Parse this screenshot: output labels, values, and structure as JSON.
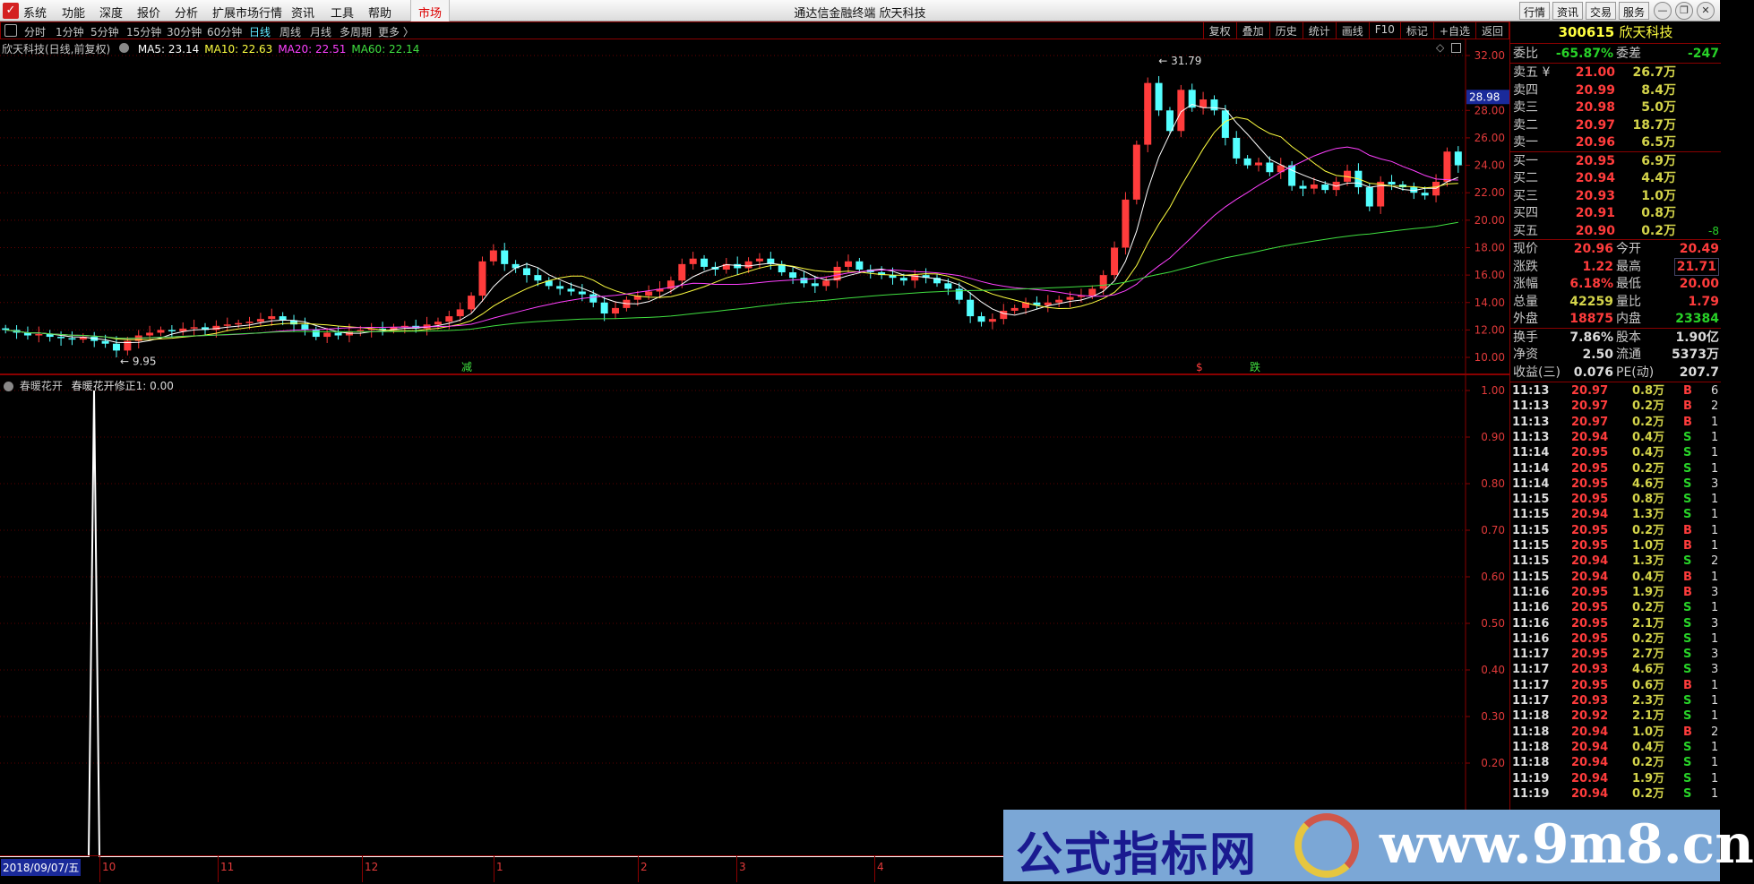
{
  "titlebar": {
    "app_title": "通达信金融终端  欣天科技",
    "menu": [
      "系统",
      "功能",
      "深度",
      "报价",
      "分析",
      "扩展市场行情",
      "资讯",
      "工具",
      "帮助"
    ],
    "market": "市场",
    "right_buttons": [
      "行情",
      "资讯",
      "交易",
      "服务"
    ],
    "window_controls": [
      "minimize-icon",
      "restore-icon",
      "close-icon"
    ]
  },
  "toolbar": {
    "periods": [
      "分时",
      "1分钟",
      "5分钟",
      "15分钟",
      "30分钟",
      "60分钟",
      "日线",
      "周线",
      "月线",
      "多周期",
      "更多 〉"
    ],
    "active_period": "日线",
    "buttons": [
      "复权",
      "叠加",
      "历史",
      "统计",
      "画线",
      "F10",
      "标记",
      "+自选",
      "返回"
    ]
  },
  "main_chart": {
    "title": "欣天科技(日线,前复权)",
    "ma": [
      {
        "label": "MA5: 23.14",
        "color": "#ffffff",
        "period": 5
      },
      {
        "label": "MA10: 22.63",
        "color": "#ffff40",
        "period": 10
      },
      {
        "label": "MA20: 22.51",
        "color": "#ff40ff",
        "period": 20
      },
      {
        "label": "MA60: 22.14",
        "color": "#40e040",
        "period": 60
      }
    ],
    "y_ticks": [
      "32.00",
      "28.00",
      "26.00",
      "24.00",
      "22.00",
      "20.00",
      "18.00",
      "16.00",
      "14.00",
      "12.00",
      "10.00"
    ],
    "crosshair_price": "28.98",
    "high_label": "31.79",
    "low_label": "9.95",
    "markers": [
      {
        "text": "减",
        "color": "#40e040"
      },
      {
        "text": "$",
        "color": "#ff3c3c"
      },
      {
        "text": "跌",
        "color": "#40e040"
      }
    ],
    "colors": {
      "up": "#ff3c3c",
      "down": "#54ffff"
    },
    "closes": [
      12.0,
      11.8,
      11.6,
      11.7,
      11.5,
      11.4,
      11.3,
      11.5,
      11.2,
      11.0,
      10.5,
      11.2,
      11.6,
      11.8,
      12.0,
      11.9,
      12.1,
      12.2,
      12.0,
      12.3,
      12.4,
      12.5,
      12.6,
      12.8,
      13.0,
      12.7,
      12.4,
      12.0,
      11.5,
      11.8,
      11.6,
      11.9,
      12.0,
      12.1,
      12.0,
      12.2,
      12.3,
      12.1,
      12.4,
      12.6,
      13.0,
      13.5,
      14.5,
      17.0,
      17.8,
      16.8,
      16.5,
      16.0,
      15.6,
      15.2,
      15.0,
      14.8,
      14.6,
      14.0,
      13.2,
      13.6,
      14.2,
      14.5,
      14.8,
      15.0,
      15.6,
      16.8,
      17.2,
      16.6,
      16.4,
      16.8,
      16.5,
      17.0,
      17.2,
      16.8,
      16.2,
      15.8,
      15.4,
      15.2,
      15.6,
      16.6,
      17.0,
      16.4,
      16.2,
      16.0,
      15.8,
      15.6,
      16.0,
      15.8,
      15.4,
      15.0,
      14.2,
      13.0,
      12.6,
      12.8,
      13.4,
      13.6,
      14.0,
      13.8,
      14.0,
      14.2,
      14.4,
      14.5,
      15.0,
      16.0,
      18.0,
      21.5,
      25.5,
      30.0,
      28.0,
      26.5,
      29.5,
      28.2,
      28.8,
      28.0,
      26.0,
      24.5,
      24.0,
      24.2,
      23.5,
      24.0,
      22.5,
      22.3,
      22.6,
      22.2,
      22.8,
      23.6,
      22.4,
      21.0,
      22.8,
      22.6,
      22.4,
      22.0,
      21.8,
      22.8,
      25.0,
      24.0
    ]
  },
  "indicator": {
    "name": "春暖花开",
    "line_label": "春暖花开修正1: 0.00",
    "y_ticks": [
      "1.00",
      "0.90",
      "0.80",
      "0.70",
      "0.60",
      "0.50",
      "0.40",
      "0.30",
      "0.20"
    ],
    "spike_value": 1.0,
    "baseline": 0.0
  },
  "time_axis": {
    "current": "2018/09/07/五",
    "labels": [
      "10",
      "11",
      "12",
      "1",
      "2",
      "3",
      "4"
    ]
  },
  "quote": {
    "code": "300615",
    "name": "欣天科技",
    "weibi": {
      "label": "委比",
      "value": "-65.87%",
      "label2": "委差",
      "value2": "-247"
    },
    "sell": [
      {
        "label": "卖五 ¥",
        "price": "21.00",
        "vol": "26.7万"
      },
      {
        "label": "卖四",
        "price": "20.99",
        "vol": "8.4万"
      },
      {
        "label": "卖三",
        "price": "20.98",
        "vol": "5.0万"
      },
      {
        "label": "卖二",
        "price": "20.97",
        "vol": "18.7万"
      },
      {
        "label": "卖一",
        "price": "20.96",
        "vol": "6.5万"
      }
    ],
    "buy": [
      {
        "label": "买一",
        "price": "20.95",
        "vol": "6.9万",
        "extra": ""
      },
      {
        "label": "买二",
        "price": "20.94",
        "vol": "4.4万",
        "extra": ""
      },
      {
        "label": "买三",
        "price": "20.93",
        "vol": "1.0万",
        "extra": ""
      },
      {
        "label": "买四",
        "price": "20.91",
        "vol": "0.8万",
        "extra": ""
      },
      {
        "label": "买五",
        "price": "20.90",
        "vol": "0.2万",
        "extra": "-8"
      }
    ],
    "stats": [
      {
        "l": "现价",
        "v": "20.96",
        "c": "red",
        "l2": "今开",
        "v2": "20.49",
        "c2": "red"
      },
      {
        "l": "涨跌",
        "v": "1.22",
        "c": "red",
        "l2": "最高",
        "v2": "21.71",
        "c2": "red"
      },
      {
        "l": "涨幅",
        "v": "6.18%",
        "c": "red",
        "l2": "最低",
        "v2": "20.00",
        "c2": "red"
      },
      {
        "l": "总量",
        "v": "42259",
        "c": "yel",
        "l2": "量比",
        "v2": "1.79",
        "c2": "red"
      },
      {
        "l": "外盘",
        "v": "18875",
        "c": "red",
        "l2": "内盘",
        "v2": "23384",
        "c2": "grn"
      }
    ],
    "finance": [
      {
        "l": "换手",
        "v": "7.86%",
        "l2": "股本",
        "v2": "1.90亿"
      },
      {
        "l": "净资",
        "v": "2.50",
        "l2": "流通",
        "v2": "5373万"
      },
      {
        "l": "收益(三)",
        "v": "0.076",
        "l2": "PE(动)",
        "v2": "207.7"
      }
    ]
  },
  "trades": [
    [
      "11:13",
      "20.97",
      "0.8万",
      "B",
      "6"
    ],
    [
      "11:13",
      "20.97",
      "0.2万",
      "B",
      "2"
    ],
    [
      "11:13",
      "20.97",
      "0.2万",
      "B",
      "1"
    ],
    [
      "11:13",
      "20.94",
      "0.4万",
      "S",
      "1"
    ],
    [
      "11:14",
      "20.95",
      "0.4万",
      "S",
      "1"
    ],
    [
      "11:14",
      "20.95",
      "0.2万",
      "S",
      "1"
    ],
    [
      "11:14",
      "20.95",
      "4.6万",
      "S",
      "3"
    ],
    [
      "11:15",
      "20.95",
      "0.8万",
      "S",
      "1"
    ],
    [
      "11:15",
      "20.94",
      "1.3万",
      "S",
      "1"
    ],
    [
      "11:15",
      "20.95",
      "0.2万",
      "B",
      "1"
    ],
    [
      "11:15",
      "20.95",
      "1.0万",
      "B",
      "1"
    ],
    [
      "11:15",
      "20.94",
      "1.3万",
      "S",
      "2"
    ],
    [
      "11:15",
      "20.94",
      "0.4万",
      "B",
      "1"
    ],
    [
      "11:16",
      "20.95",
      "1.9万",
      "B",
      "3"
    ],
    [
      "11:16",
      "20.95",
      "0.2万",
      "S",
      "1"
    ],
    [
      "11:16",
      "20.95",
      "2.1万",
      "S",
      "3"
    ],
    [
      "11:16",
      "20.95",
      "0.2万",
      "S",
      "1"
    ],
    [
      "11:17",
      "20.95",
      "2.7万",
      "S",
      "3"
    ],
    [
      "11:17",
      "20.93",
      "4.6万",
      "S",
      "3"
    ],
    [
      "11:17",
      "20.95",
      "0.6万",
      "B",
      "1"
    ],
    [
      "11:17",
      "20.93",
      "2.3万",
      "S",
      "1"
    ],
    [
      "11:18",
      "20.92",
      "2.1万",
      "S",
      "1"
    ],
    [
      "11:18",
      "20.94",
      "1.0万",
      "B",
      "2"
    ],
    [
      "11:18",
      "20.94",
      "0.4万",
      "S",
      "1"
    ],
    [
      "11:18",
      "20.94",
      "0.2万",
      "S",
      "1"
    ],
    [
      "11:19",
      "20.94",
      "1.9万",
      "S",
      "1"
    ],
    [
      "11:19",
      "20.94",
      "0.2万",
      "S",
      "1"
    ]
  ],
  "watermark": {
    "text_cn": "公式指标网",
    "url": "www.9m8.cn"
  }
}
